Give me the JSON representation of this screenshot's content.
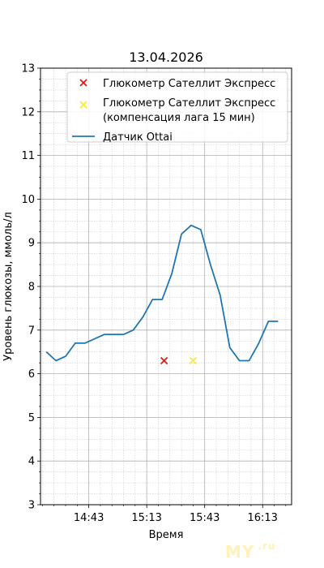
{
  "chart_data": {
    "type": "line",
    "title": "13.04.2026",
    "xlabel": "Время",
    "ylabel": "Уровень глюкозы, ммоль/л",
    "ylim": [
      3,
      13
    ],
    "yticks": [
      3,
      4,
      5,
      6,
      7,
      8,
      9,
      10,
      11,
      12,
      13
    ],
    "xlim": [
      "14:18",
      "16:28"
    ],
    "xticks": [
      "14:43",
      "15:13",
      "15:43",
      "16:13"
    ],
    "grid": {
      "major": true,
      "minor": true
    },
    "legend_position": "top-right",
    "series": [
      {
        "name": "Глюкометр Сателлит Экспресс",
        "type": "scatter",
        "marker": "x",
        "color": "#e8170f",
        "x": [
          "15:22"
        ],
        "y": [
          6.3
        ]
      },
      {
        "name": "Глюкометр Сателлит Экспресс\n(компенсация лага 15 мин)",
        "name_lines": [
          "Глюкометр Сателлит Экспресс",
          "(компенсация лага 15 мин)"
        ],
        "type": "scatter",
        "marker": "x",
        "color": "#f5ee2a",
        "x": [
          "15:37"
        ],
        "y": [
          6.3
        ]
      },
      {
        "name": "Датчик Ottai",
        "type": "line",
        "color": "#1f77b4",
        "x": [
          "14:21",
          "14:26",
          "14:31",
          "14:36",
          "14:41",
          "14:46",
          "14:51",
          "14:56",
          "15:01",
          "15:06",
          "15:11",
          "15:16",
          "15:21",
          "15:26",
          "15:31",
          "15:36",
          "15:41",
          "15:46",
          "15:51",
          "15:56",
          "16:01",
          "16:06",
          "16:11",
          "16:16",
          "16:21"
        ],
        "y": [
          6.5,
          6.3,
          6.4,
          6.7,
          6.7,
          6.8,
          6.9,
          6.9,
          6.9,
          7.0,
          7.3,
          7.7,
          7.7,
          8.3,
          9.2,
          9.4,
          9.3,
          8.5,
          7.8,
          6.6,
          6.3,
          6.3,
          6.7,
          7.2,
          7.2
        ]
      }
    ]
  },
  "watermark": {
    "text": "MY",
    "suffix": ".ru"
  }
}
